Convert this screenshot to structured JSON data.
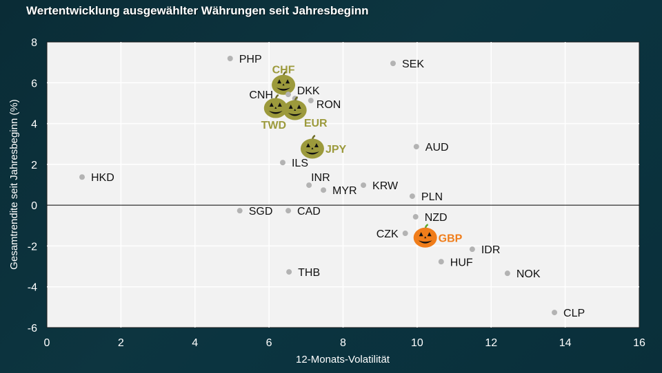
{
  "chart_data": {
    "type": "scatter",
    "title": "Wertentwicklung ausgewählter Währungen seit Jahresbeginn",
    "xlabel": "12-Monats-Volatilität",
    "ylabel": "Gesamtrendite seit Jahresbeginn (%)",
    "xlim": [
      0,
      16
    ],
    "ylim": [
      -6,
      8
    ],
    "xticks": [
      0,
      2,
      4,
      6,
      8,
      10,
      12,
      14,
      16
    ],
    "yticks": [
      -6,
      -4,
      -2,
      0,
      2,
      4,
      6,
      8
    ],
    "grid": true,
    "zero_line": true,
    "colors": {
      "point": "#b3b3b3",
      "highlight_olive": "#9c9a3c",
      "highlight_orange": "#f07d1a",
      "label": "#111111",
      "plot_bg": "#f2f2f2"
    },
    "points": [
      {
        "label": "PHP",
        "x": 4.95,
        "y": 7.19,
        "style": "dot",
        "label_pos": "right"
      },
      {
        "label": "SEK",
        "x": 9.35,
        "y": 6.95,
        "style": "dot",
        "label_pos": "right"
      },
      {
        "label": "CHF",
        "x": 6.39,
        "y": 5.9,
        "style": "pumpkin-olive",
        "label_pos": "top"
      },
      {
        "label": "DKK",
        "x": 6.7,
        "y": 5.23,
        "style": "dot",
        "label_pos": "top-right"
      },
      {
        "label": "CNH",
        "x": 6.52,
        "y": 5.43,
        "style": "dot",
        "label_pos": "left-cnh"
      },
      {
        "label": "RON",
        "x": 7.13,
        "y": 5.13,
        "style": "dot",
        "label_pos": "right-low"
      },
      {
        "label": "TWD",
        "x": 6.18,
        "y": 4.76,
        "style": "pumpkin-olive",
        "label_pos": "bottom-left"
      },
      {
        "label": "EUR",
        "x": 6.7,
        "y": 4.66,
        "style": "pumpkin-olive",
        "label_pos": "bottom-right"
      },
      {
        "label": "AUD",
        "x": 9.98,
        "y": 2.87,
        "style": "dot",
        "label_pos": "right"
      },
      {
        "label": "JPY",
        "x": 7.17,
        "y": 2.77,
        "style": "pumpkin-olive",
        "label_pos": "right"
      },
      {
        "label": "ILS",
        "x": 6.37,
        "y": 2.09,
        "style": "dot",
        "label_pos": "right"
      },
      {
        "label": "HKD",
        "x": 0.95,
        "y": 1.38,
        "style": "dot",
        "label_pos": "right"
      },
      {
        "label": "INR",
        "x": 7.08,
        "y": 0.98,
        "style": "dot",
        "label_pos": "top-right"
      },
      {
        "label": "KRW",
        "x": 8.55,
        "y": 0.98,
        "style": "dot",
        "label_pos": "right"
      },
      {
        "label": "MYR",
        "x": 7.47,
        "y": 0.74,
        "style": "dot",
        "label_pos": "right"
      },
      {
        "label": "PLN",
        "x": 9.87,
        "y": 0.44,
        "style": "dot",
        "label_pos": "right"
      },
      {
        "label": "SGD",
        "x": 5.21,
        "y": -0.27,
        "style": "dot",
        "label_pos": "right"
      },
      {
        "label": "CAD",
        "x": 6.52,
        "y": -0.27,
        "style": "dot",
        "label_pos": "right"
      },
      {
        "label": "NZD",
        "x": 9.96,
        "y": -0.57,
        "style": "dot",
        "label_pos": "right"
      },
      {
        "label": "CZK",
        "x": 9.68,
        "y": -1.38,
        "style": "dot",
        "label_pos": "left"
      },
      {
        "label": "GBP",
        "x": 10.22,
        "y": -1.59,
        "style": "pumpkin-orange",
        "label_pos": "right"
      },
      {
        "label": "IDR",
        "x": 11.49,
        "y": -2.16,
        "style": "dot",
        "label_pos": "right"
      },
      {
        "label": "HUF",
        "x": 10.65,
        "y": -2.77,
        "style": "dot",
        "label_pos": "right"
      },
      {
        "label": "THB",
        "x": 6.54,
        "y": -3.27,
        "style": "dot",
        "label_pos": "right"
      },
      {
        "label": "NOK",
        "x": 12.44,
        "y": -3.34,
        "style": "dot",
        "label_pos": "right"
      },
      {
        "label": "CLP",
        "x": 13.71,
        "y": -5.26,
        "style": "dot",
        "label_pos": "right"
      }
    ]
  }
}
